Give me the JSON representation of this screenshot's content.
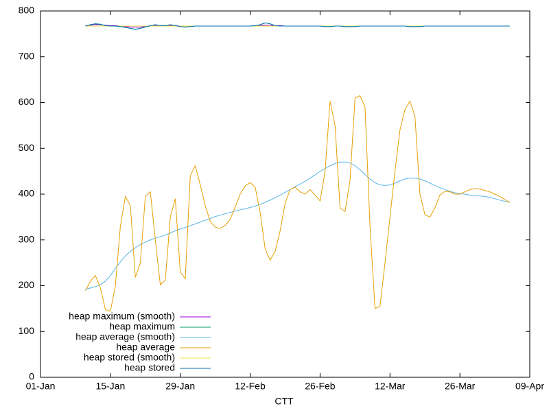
{
  "chart_data": {
    "type": "line",
    "x_label": "CTT",
    "xlim": [
      0,
      98
    ],
    "xticks": [
      {
        "value": 0,
        "label": "01-Jan"
      },
      {
        "value": 14,
        "label": "15-Jan"
      },
      {
        "value": 28,
        "label": "29-Jan"
      },
      {
        "value": 42,
        "label": "12-Feb"
      },
      {
        "value": 56,
        "label": "26-Feb"
      },
      {
        "value": 70,
        "label": "12-Mar"
      },
      {
        "value": 84,
        "label": "26-Mar"
      },
      {
        "value": 98,
        "label": "09-Apr"
      }
    ],
    "ylim": [
      0,
      800
    ],
    "yticks": [
      0,
      100,
      200,
      300,
      400,
      500,
      600,
      700,
      800
    ],
    "grid": false,
    "legend": "lower-left",
    "x": [
      9,
      10,
      11,
      12,
      13,
      14,
      15,
      16,
      17,
      18,
      19,
      20,
      21,
      22,
      23,
      24,
      25,
      26,
      27,
      28,
      29,
      30,
      31,
      32,
      33,
      34,
      35,
      36,
      37,
      38,
      39,
      40,
      41,
      42,
      43,
      44,
      45,
      46,
      47,
      48,
      49,
      50,
      51,
      52,
      53,
      54,
      55,
      56,
      57,
      58,
      59,
      60,
      61,
      62,
      63,
      64,
      65,
      66,
      67,
      68,
      69,
      70,
      71,
      72,
      73,
      74,
      75,
      76,
      77,
      78,
      79,
      80,
      81,
      82,
      83,
      84,
      85,
      86,
      87,
      88,
      89,
      90,
      91,
      92,
      93,
      94
    ],
    "series": [
      {
        "name": "heap maximum (smooth)",
        "color": "#9400d3",
        "values": [
          768,
          769,
          770,
          770,
          769,
          768,
          768,
          767,
          766,
          765,
          765,
          765,
          766,
          767,
          768,
          768,
          768,
          768,
          768,
          767,
          767,
          767,
          767,
          767,
          767,
          767,
          767,
          767,
          767,
          767,
          767,
          767,
          767,
          767,
          768,
          768,
          769,
          769,
          768,
          768,
          767,
          767,
          767,
          767,
          767,
          767,
          767,
          767,
          767,
          767,
          767,
          767,
          767,
          767,
          767,
          767,
          767,
          767,
          767,
          767,
          767,
          767,
          767,
          767,
          767,
          767,
          767,
          767,
          767,
          767,
          767,
          767,
          767,
          767,
          767,
          767,
          767,
          767,
          767,
          767,
          767,
          767,
          767,
          767,
          767,
          767
        ]
      },
      {
        "name": "heap maximum",
        "color": "#009e73",
        "values": [
          767,
          770,
          772,
          771,
          768,
          767,
          767,
          766,
          764,
          762,
          760,
          762,
          765,
          768,
          770,
          768,
          768,
          770,
          768,
          766,
          765,
          766,
          767,
          767,
          767,
          767,
          767,
          767,
          767,
          767,
          767,
          767,
          767,
          767,
          768,
          770,
          774,
          772,
          768,
          767,
          767,
          767,
          767,
          767,
          767,
          767,
          767,
          767,
          766,
          766,
          767,
          767,
          766,
          766,
          766,
          767,
          767,
          767,
          767,
          767,
          767,
          767,
          767,
          767,
          767,
          766,
          766,
          766,
          767,
          767,
          767,
          767,
          767,
          767,
          767,
          767,
          767,
          767,
          767,
          767,
          767,
          767,
          767,
          767,
          767,
          767
        ]
      },
      {
        "name": "heap average (smooth)",
        "color": "#56b4e9",
        "values": [
          192,
          195,
          198,
          202,
          210,
          222,
          238,
          252,
          265,
          275,
          283,
          290,
          295,
          300,
          304,
          307,
          311,
          315,
          320,
          324,
          327,
          331,
          335,
          339,
          343,
          347,
          351,
          354,
          357,
          360,
          363,
          366,
          368,
          371,
          374,
          378,
          382,
          387,
          392,
          398,
          404,
          410,
          416,
          422,
          428,
          435,
          442,
          450,
          456,
          462,
          467,
          470,
          470,
          468,
          462,
          453,
          443,
          433,
          425,
          420,
          419,
          420,
          424,
          429,
          433,
          435,
          435,
          433,
          429,
          424,
          419,
          414,
          410,
          406,
          403,
          401,
          400,
          398,
          397,
          396,
          395,
          393,
          390,
          387,
          384,
          382
        ]
      },
      {
        "name": "heap average",
        "color": "#e69f00",
        "values": [
          189,
          210,
          222,
          195,
          148,
          144,
          200,
          330,
          395,
          375,
          218,
          250,
          395,
          405,
          300,
          202,
          212,
          350,
          390,
          230,
          215,
          440,
          462,
          420,
          375,
          340,
          328,
          325,
          332,
          345,
          372,
          400,
          418,
          425,
          415,
          360,
          280,
          256,
          275,
          320,
          380,
          410,
          415,
          405,
          400,
          410,
          398,
          385,
          450,
          603,
          550,
          370,
          362,
          430,
          610,
          615,
          590,
          330,
          150,
          155,
          250,
          350,
          450,
          540,
          585,
          603,
          570,
          400,
          355,
          350,
          370,
          398,
          406,
          405,
          400,
          400,
          405,
          410,
          412,
          411,
          408,
          405,
          400,
          395,
          388,
          382
        ]
      },
      {
        "name": "heap stored (smooth)",
        "color": "#f0e442",
        "values": [
          767,
          767,
          767,
          767,
          767,
          767,
          767,
          767,
          767,
          767,
          767,
          767,
          767,
          767,
          767,
          767,
          767,
          767,
          767,
          767,
          767,
          767,
          767,
          767,
          767,
          767,
          767,
          767,
          767,
          767,
          767,
          767,
          767,
          767,
          767,
          767,
          767,
          767,
          767,
          767,
          767,
          767,
          767,
          767,
          767,
          767,
          767,
          767,
          767,
          767,
          767,
          767,
          767,
          767,
          767,
          767,
          767,
          767,
          767,
          767,
          767,
          767,
          767,
          767,
          767,
          767,
          767,
          767,
          767,
          767,
          767,
          767,
          767,
          767,
          767,
          767,
          767,
          767,
          767,
          767,
          767,
          767,
          767,
          767,
          767,
          767
        ]
      },
      {
        "name": "heap stored",
        "color": "#0072b2",
        "values": [
          767,
          770,
          772,
          771,
          768,
          767,
          767,
          766,
          764,
          762,
          760,
          762,
          765,
          768,
          770,
          768,
          768,
          770,
          768,
          766,
          765,
          766,
          767,
          767,
          767,
          767,
          767,
          767,
          767,
          767,
          767,
          767,
          767,
          767,
          768,
          770,
          774,
          772,
          768,
          767,
          767,
          767,
          767,
          767,
          767,
          767,
          767,
          767,
          766,
          766,
          767,
          767,
          766,
          766,
          766,
          767,
          767,
          767,
          767,
          767,
          767,
          767,
          767,
          767,
          767,
          766,
          766,
          766,
          767,
          767,
          767,
          767,
          767,
          767,
          767,
          767,
          767,
          767,
          767,
          767,
          767,
          767,
          767,
          767,
          767,
          767
        ]
      }
    ]
  }
}
